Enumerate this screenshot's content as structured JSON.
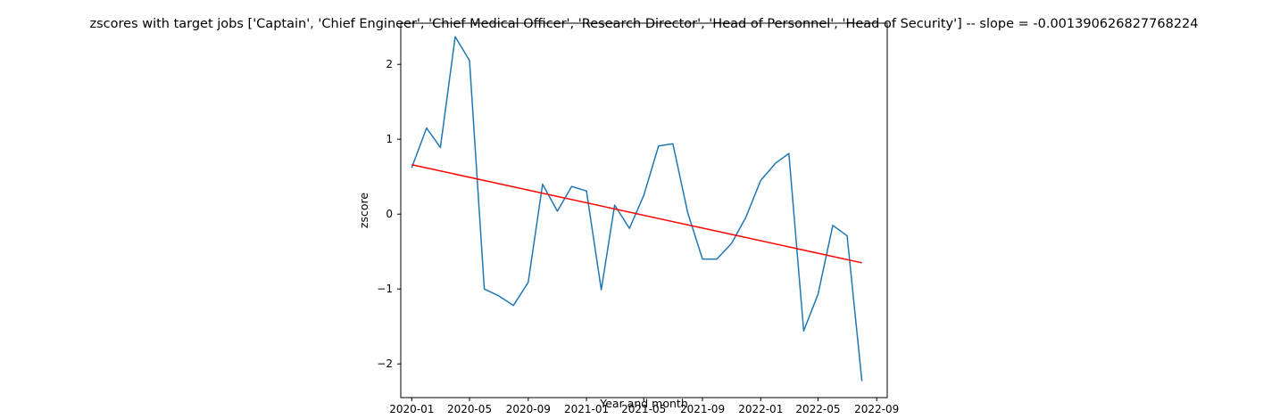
{
  "chart_data": {
    "type": "line",
    "title": "zscores with target jobs ['Captain', 'Chief Engineer', 'Chief Medical Officer', 'Research Director', 'Head of Personnel', 'Head of Security'] -- slope = -0.001390626827768224",
    "xlabel": "Year and month",
    "ylabel": "zscore",
    "xlim": [
      "2019-12-09",
      "2022-09-23"
    ],
    "ylim": [
      -2.45,
      2.55
    ],
    "x_ticks": [
      {
        "date": "2020-01-01",
        "label": "2020-01"
      },
      {
        "date": "2020-05-01",
        "label": "2020-05"
      },
      {
        "date": "2020-09-01",
        "label": "2020-09"
      },
      {
        "date": "2021-01-01",
        "label": "2021-01"
      },
      {
        "date": "2021-05-01",
        "label": "2021-05"
      },
      {
        "date": "2021-09-01",
        "label": "2021-09"
      },
      {
        "date": "2022-01-01",
        "label": "2022-01"
      },
      {
        "date": "2022-05-01",
        "label": "2022-05"
      },
      {
        "date": "2022-09-01",
        "label": "2022-09"
      }
    ],
    "y_ticks": [
      {
        "value": -2,
        "label": "−2"
      },
      {
        "value": -1,
        "label": "−1"
      },
      {
        "value": 0,
        "label": "0"
      },
      {
        "value": 1,
        "label": "1"
      },
      {
        "value": 2,
        "label": "2"
      }
    ],
    "grid": false,
    "series": [
      {
        "color": "#1f77b4",
        "points": [
          {
            "x": "2020-01-01",
            "y": 0.62
          },
          {
            "x": "2020-02-01",
            "y": 1.15
          },
          {
            "x": "2020-03-01",
            "y": 0.89
          },
          {
            "x": "2020-04-01",
            "y": 2.37
          },
          {
            "x": "2020-05-01",
            "y": 2.05
          },
          {
            "x": "2020-06-01",
            "y": -1.0
          },
          {
            "x": "2020-07-01",
            "y": -1.09
          },
          {
            "x": "2020-08-01",
            "y": -1.22
          },
          {
            "x": "2020-09-01",
            "y": -0.91
          },
          {
            "x": "2020-10-01",
            "y": 0.4
          },
          {
            "x": "2020-11-01",
            "y": 0.04
          },
          {
            "x": "2020-12-01",
            "y": 0.37
          },
          {
            "x": "2021-01-01",
            "y": 0.31
          },
          {
            "x": "2021-02-01",
            "y": -1.01
          },
          {
            "x": "2021-03-01",
            "y": 0.12
          },
          {
            "x": "2021-04-01",
            "y": -0.19
          },
          {
            "x": "2021-05-01",
            "y": 0.25
          },
          {
            "x": "2021-06-01",
            "y": 0.91
          },
          {
            "x": "2021-07-01",
            "y": 0.94
          },
          {
            "x": "2021-08-01",
            "y": 0.02
          },
          {
            "x": "2021-09-01",
            "y": -0.6
          },
          {
            "x": "2021-10-01",
            "y": -0.6
          },
          {
            "x": "2021-11-01",
            "y": -0.39
          },
          {
            "x": "2021-12-01",
            "y": -0.04
          },
          {
            "x": "2022-01-01",
            "y": 0.45
          },
          {
            "x": "2022-02-01",
            "y": 0.68
          },
          {
            "x": "2022-03-01",
            "y": 0.81
          },
          {
            "x": "2022-04-01",
            "y": -1.56
          },
          {
            "x": "2022-05-01",
            "y": -1.07
          },
          {
            "x": "2022-06-01",
            "y": -0.15
          },
          {
            "x": "2022-07-01",
            "y": -0.29
          },
          {
            "x": "2022-08-01",
            "y": -2.23
          }
        ]
      },
      {
        "color": "#ff0000",
        "points": [
          {
            "x": "2020-01-01",
            "y": 0.66
          },
          {
            "x": "2022-08-01",
            "y": -0.65
          }
        ]
      }
    ]
  }
}
